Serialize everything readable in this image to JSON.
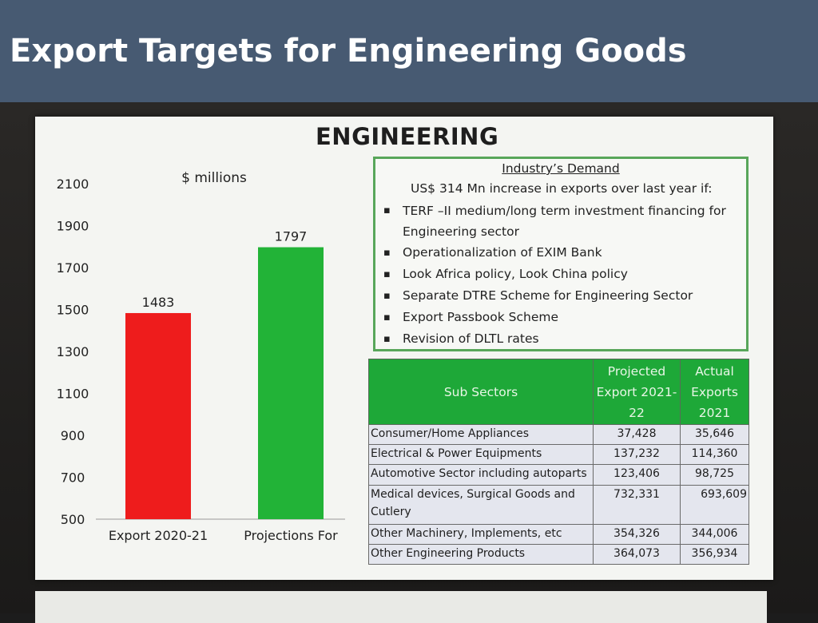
{
  "page_title": "Export Targets for Engineering Goods",
  "slide": {
    "title": "ENGINEERING"
  },
  "chart_data": {
    "type": "bar",
    "unit_label": "$ millions",
    "categories": [
      "Export 2020-21",
      "Projections For"
    ],
    "values": [
      1483,
      1797
    ],
    "bar_colors": [
      "#ee1c1c",
      "#22b337"
    ],
    "data_labels": [
      "1483",
      "1797"
    ],
    "yticks": [
      500,
      700,
      900,
      1100,
      1300,
      1500,
      1700,
      1900,
      2100
    ],
    "ylim": [
      500,
      2100
    ],
    "grid": false,
    "title": "",
    "xlabel": "",
    "ylabel": ""
  },
  "industry_demand": {
    "heading": "Industry’s Demand",
    "summary": "US$ 314 Mn increase in exports over last year if:",
    "items": [
      "TERF –II medium/long term investment financing for Engineering sector",
      "Operationalization of EXIM Bank",
      "Look Africa policy, Look China policy",
      "Separate DTRE Scheme for Engineering Sector",
      "Export Passbook Scheme",
      "Revision of DLTL rates"
    ]
  },
  "table": {
    "headers": [
      "Sub Sectors",
      "Projected Export 2021-22",
      "Actual Exports 2021"
    ],
    "rows": [
      [
        "Consumer/Home Appliances",
        "37,428",
        "35,646"
      ],
      [
        "Electrical & Power Equipments",
        "137,232",
        "114,360"
      ],
      [
        "Automotive Sector including autoparts",
        "123,406",
        "98,725"
      ],
      [
        "Medical devices, Surgical Goods and Cutlery",
        "732,331",
        "693,609"
      ],
      [
        "Other Machinery, Implements, etc",
        "354,326",
        "344,006"
      ],
      [
        "Other Engineering Products",
        "364,073",
        "356,934"
      ]
    ]
  },
  "colors": {
    "title_bar": "#475a72",
    "header_green": "#1ea838",
    "box_border": "#58a65a"
  }
}
